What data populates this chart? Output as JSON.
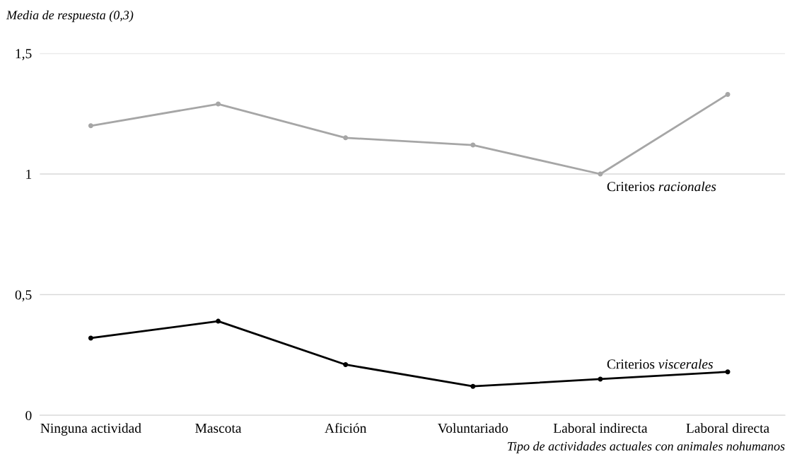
{
  "chart_data": {
    "type": "line",
    "ylabel": "Media de respuesta (0,3)",
    "xlabel": "Tipo de actividades actuales con animales nohumanos",
    "categories": [
      "Ninguna actividad",
      "Mascota",
      "Afición",
      "Voluntariado",
      "Laboral indirecta",
      "Laboral directa"
    ],
    "series": [
      {
        "name": "Criterios racionales",
        "color": "#a6a6a6",
        "values": [
          1.2,
          1.29,
          1.15,
          1.12,
          1.0,
          1.33
        ]
      },
      {
        "name": "Criterios viscerales",
        "color": "#000000",
        "values": [
          0.32,
          0.39,
          0.21,
          0.12,
          0.15,
          0.18
        ]
      }
    ],
    "ylim": [
      0,
      1.5
    ],
    "yticks": [
      0,
      {
        "value": 0.5,
        "label": "0,5"
      },
      1,
      {
        "value": 1.5,
        "label": "1,5"
      }
    ],
    "grid": "y",
    "legend": false,
    "marker": "circle",
    "line_style": "solid"
  }
}
